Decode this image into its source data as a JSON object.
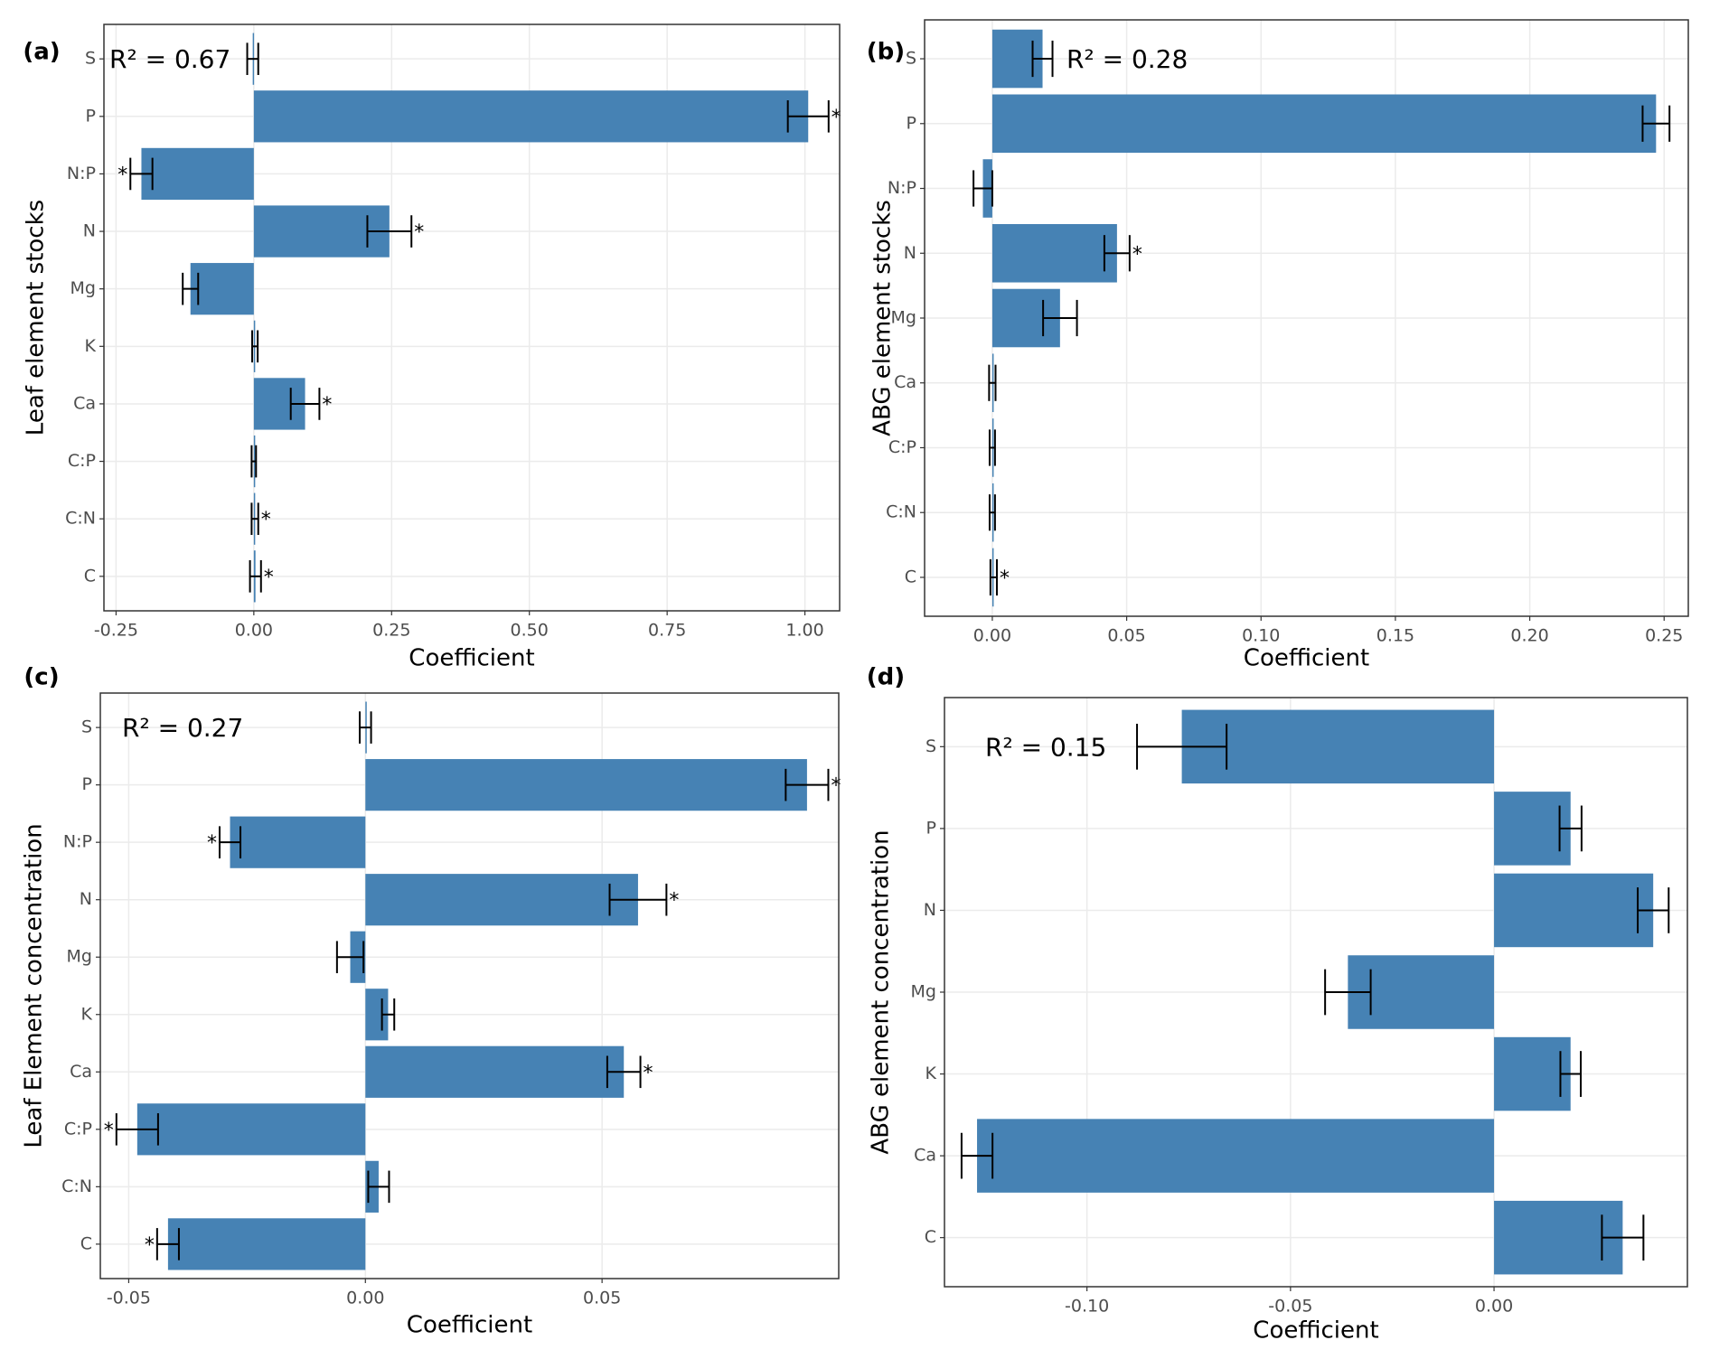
{
  "chart_data": [
    {
      "type": "bar",
      "orientation": "horizontal",
      "panel_label": "(a)",
      "annotation": "R² = 0.67",
      "y_label": "Leaf element stocks",
      "x_label": "Coefficient",
      "categories": [
        "S",
        "P",
        "N:P",
        "N",
        "Mg",
        "K",
        "Ca",
        "C:P",
        "C:N",
        "C"
      ],
      "values": [
        -0.002,
        1.006,
        -0.204,
        0.246,
        -0.115,
        0.002,
        0.093,
        0.0,
        0.002,
        0.003
      ],
      "errors": [
        0.01,
        0.037,
        0.02,
        0.04,
        0.014,
        0.005,
        0.026,
        0.004,
        0.006,
        0.01
      ],
      "significance": [
        null,
        "*",
        "*",
        "*",
        null,
        null,
        "*",
        null,
        "*",
        "*"
      ],
      "color": "#4682b4",
      "xlim": [
        -0.272,
        1.063
      ],
      "xticks": [
        {
          "value": -0.25,
          "label": "-0.25"
        },
        {
          "value": 0,
          "label": "0.00"
        },
        {
          "value": 0.25,
          "label": "0.25"
        },
        {
          "value": 0.5,
          "label": "0.50"
        },
        {
          "value": 0.75,
          "label": "0.75"
        },
        {
          "value": 1,
          "label": "1.00"
        }
      ],
      "grid": true
    },
    {
      "type": "bar",
      "orientation": "horizontal",
      "panel_label": "(b)",
      "annotation": "R² = 0.28",
      "y_label": "ABG element stocks",
      "x_label": "Coefficient",
      "categories": [
        "S",
        "P",
        "N:P",
        "N",
        "Mg",
        "Ca",
        "C:P",
        "C:N",
        "C"
      ],
      "values": [
        0.0187,
        0.247,
        -0.0035,
        0.0464,
        0.0252,
        0.0,
        0.0,
        0.0,
        0.0005
      ],
      "errors": [
        0.0037,
        0.005,
        0.0035,
        0.0047,
        0.0063,
        0.0012,
        0.001,
        0.001,
        0.0012
      ],
      "significance": [
        null,
        null,
        null,
        "*",
        null,
        null,
        null,
        null,
        "*"
      ],
      "color": "#4682b4",
      "xlim": [
        -0.0252,
        0.259
      ],
      "xticks": [
        {
          "value": 0,
          "label": "0.00"
        },
        {
          "value": 0.05,
          "label": "0.05"
        },
        {
          "value": 0.1,
          "label": "0.10"
        },
        {
          "value": 0.15,
          "label": "0.15"
        },
        {
          "value": 0.2,
          "label": "0.20"
        },
        {
          "value": 0.25,
          "label": "0.25"
        }
      ],
      "grid": true
    },
    {
      "type": "bar",
      "orientation": "horizontal",
      "panel_label": "(c)",
      "annotation": "R² = 0.27",
      "y_label": "Leaf Element concentration",
      "x_label": "Coefficient",
      "categories": [
        "S",
        "P",
        "N:P",
        "N",
        "Mg",
        "K",
        "Ca",
        "C:P",
        "C:N",
        "C"
      ],
      "values": [
        0.0,
        0.0933,
        -0.0286,
        0.0576,
        -0.0032,
        0.0048,
        0.0546,
        -0.0482,
        0.0028,
        -0.0417
      ],
      "errors": [
        0.0012,
        0.0045,
        0.0022,
        0.006,
        0.0028,
        0.0013,
        0.0035,
        0.0044,
        0.0022,
        0.0023
      ],
      "significance": [
        null,
        "*",
        "*",
        "*",
        null,
        null,
        "*",
        "*",
        null,
        "*"
      ],
      "color": "#4682b4",
      "xlim": [
        -0.056,
        0.1
      ],
      "xticks": [
        {
          "value": -0.05,
          "label": "-0.05"
        },
        {
          "value": 0,
          "label": "0.00"
        },
        {
          "value": 0.05,
          "label": "0.05"
        }
      ],
      "grid": true
    },
    {
      "type": "bar",
      "orientation": "horizontal",
      "panel_label": "(d)",
      "annotation": "R² = 0.15",
      "y_label": "ABG element concentration",
      "x_label": "Coefficient",
      "categories": [
        "S",
        "P",
        "N",
        "Mg",
        "K",
        "Ca",
        "C"
      ],
      "values": [
        -0.0767,
        0.0188,
        0.0391,
        -0.0359,
        0.0188,
        -0.127,
        0.0316
      ],
      "errors": [
        0.011,
        0.0027,
        0.0038,
        0.0056,
        0.0025,
        0.0038,
        0.0051
      ],
      "significance": [
        null,
        null,
        null,
        null,
        null,
        null,
        null
      ],
      "color": "#4682b4",
      "xlim": [
        -0.135,
        0.0475
      ],
      "xticks": [
        {
          "value": -0.1,
          "label": "-0.10"
        },
        {
          "value": -0.05,
          "label": "-0.05"
        },
        {
          "value": 0,
          "label": "0.00"
        }
      ],
      "grid": true
    }
  ]
}
